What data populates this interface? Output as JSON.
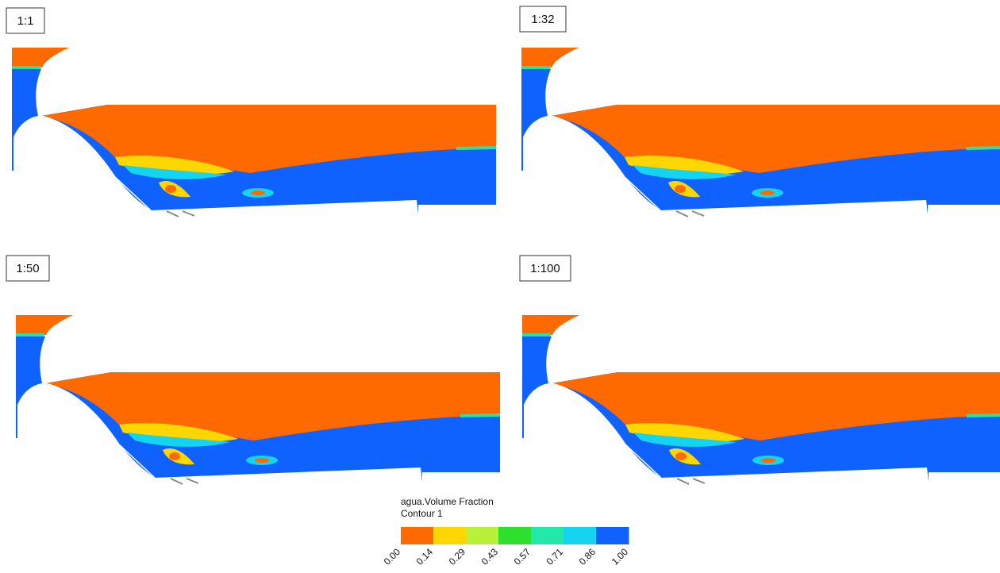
{
  "panels": [
    {
      "label": "1:1"
    },
    {
      "label": "1:32"
    },
    {
      "label": "1:50"
    },
    {
      "label": "1:100"
    }
  ],
  "legend": {
    "title": "agua.Volume Fraction",
    "subtitle": "Contour 1",
    "ticks": [
      "0.00",
      "0.14",
      "0.29",
      "0.43",
      "0.57",
      "0.71",
      "0.86",
      "1.00"
    ],
    "colors": [
      "#ff6a00",
      "#ffd700",
      "#b8f03a",
      "#2ee02e",
      "#22e8a8",
      "#14d4f0",
      "#1062ff"
    ]
  }
}
